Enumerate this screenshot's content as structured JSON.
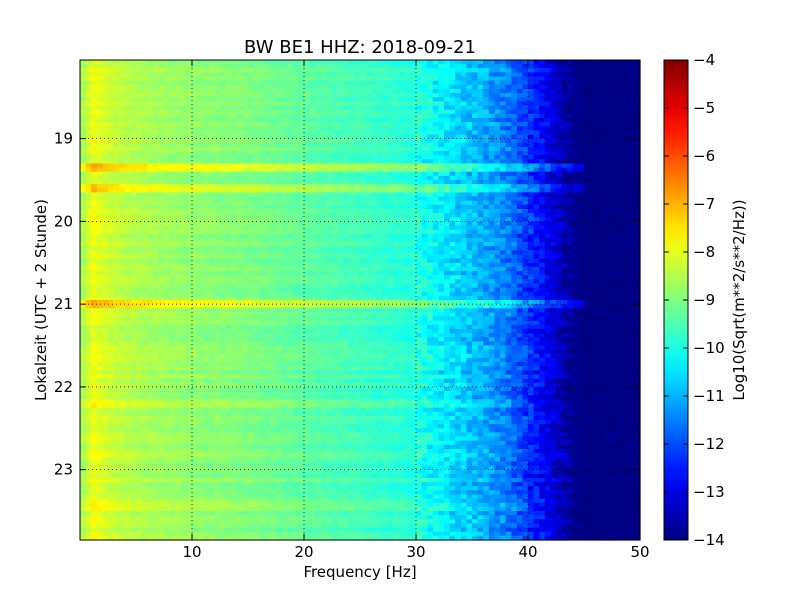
{
  "chart_data": {
    "type": "heatmap",
    "title": "BW BE1 HHZ: 2018-09-21",
    "xlabel": "Frequency [Hz]",
    "ylabel": "Lokalzeit (UTC + 2 Stunde)",
    "xlim": [
      0,
      50
    ],
    "ylim": [
      18.05,
      23.85
    ],
    "y_inverted": true,
    "x_ticks": [
      10,
      20,
      30,
      40,
      50
    ],
    "x_tick_labels": [
      "10",
      "20",
      "30",
      "40",
      "50"
    ],
    "y_ticks": [
      19,
      20,
      21,
      22,
      23
    ],
    "y_tick_labels": [
      "19",
      "20",
      "21",
      "22",
      "23"
    ],
    "grid": true,
    "colormap": "jet",
    "colorbar": {
      "label": "Log10(Sqrt(m**2/s**2/Hz))",
      "range": [
        -14,
        -4
      ],
      "ticks": [
        -4,
        -5,
        -6,
        -7,
        -8,
        -9,
        -10,
        -11,
        -12,
        -13,
        -14
      ],
      "tick_labels": [
        "−4",
        "−5",
        "−6",
        "−7",
        "−8",
        "−9",
        "−10",
        "−11",
        "−12",
        "−13",
        "−14"
      ]
    },
    "spectral_profile": {
      "frequency_hz": [
        0.5,
        1,
        1.5,
        3,
        5,
        8,
        10,
        15,
        20,
        25,
        30,
        33,
        36,
        38,
        40,
        42,
        43.5,
        45,
        50
      ],
      "log10_amplitude": [
        -8.6,
        -7.8,
        -8.0,
        -8.3,
        -8.5,
        -8.7,
        -8.8,
        -9.0,
        -9.3,
        -9.6,
        -9.9,
        -10.5,
        -11.0,
        -11.5,
        -12.2,
        -13.0,
        -13.7,
        -14,
        -14
      ]
    },
    "bright_bands": [
      {
        "time": 19.35,
        "log10_amplitude_offset": 0.9,
        "max_frequency_hz": 45
      },
      {
        "time": 19.6,
        "log10_amplitude_offset": 0.8,
        "max_frequency_hz": 45
      },
      {
        "time": 21.0,
        "log10_amplitude_offset": 1.0,
        "max_frequency_hz": 45
      },
      {
        "time": 22.2,
        "log10_amplitude_offset": 0.3,
        "max_frequency_hz": 40
      },
      {
        "time": 23.45,
        "log10_amplitude_offset": 0.4,
        "max_frequency_hz": 40
      }
    ]
  }
}
